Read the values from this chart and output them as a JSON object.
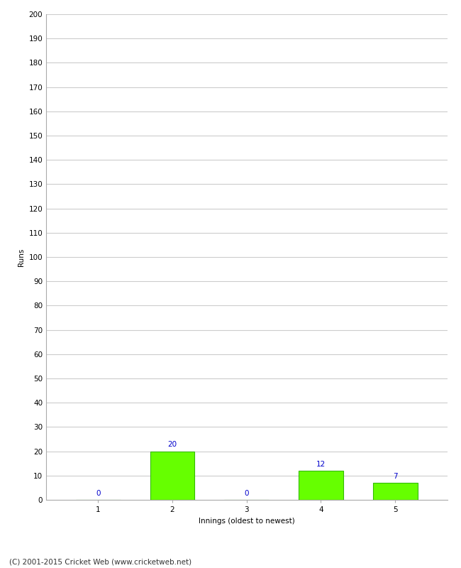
{
  "categories": [
    1,
    2,
    3,
    4,
    5
  ],
  "values": [
    0,
    20,
    0,
    12,
    7
  ],
  "bar_color": "#66ff00",
  "bar_edge_color": "#33bb00",
  "ylabel": "Runs",
  "xlabel": "Innings (oldest to newest)",
  "ylim": [
    0,
    200
  ],
  "yticks": [
    0,
    10,
    20,
    30,
    40,
    50,
    60,
    70,
    80,
    90,
    100,
    110,
    120,
    130,
    140,
    150,
    160,
    170,
    180,
    190,
    200
  ],
  "annotation_color": "#0000cc",
  "annotation_fontsize": 7.5,
  "axis_label_fontsize": 7.5,
  "tick_fontsize": 7.5,
  "footer_text": "(C) 2001-2015 Cricket Web (www.cricketweb.net)",
  "footer_fontsize": 7.5,
  "background_color": "#ffffff",
  "grid_color": "#cccccc",
  "bar_width": 0.6
}
